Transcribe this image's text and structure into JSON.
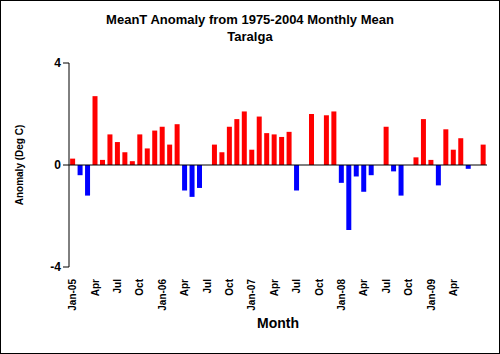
{
  "chart_data": {
    "type": "bar",
    "title": "MeanT Anomaly from 1975-2004 Monthly Mean",
    "subtitle": "Taralga",
    "x_label": "Month",
    "y_label": "Anomaly (Deg C)",
    "categories": [
      "Jan-05",
      null,
      null,
      "Apr",
      null,
      null,
      "Jul",
      null,
      null,
      "Oct",
      null,
      null,
      "Jan-06",
      null,
      null,
      "Apr",
      null,
      null,
      "Jul",
      null,
      null,
      "Oct",
      null,
      null,
      "Jan-07",
      null,
      null,
      "Apr",
      null,
      null,
      "Jul",
      null,
      null,
      "Oct",
      null,
      null,
      "Jan-08",
      null,
      null,
      "Apr",
      null,
      null,
      "Jul",
      null,
      null,
      "Oct",
      null,
      null,
      "Jan-09",
      null,
      null,
      "Apr",
      null,
      null,
      null,
      null
    ],
    "values": [
      0.25,
      -0.4,
      -1.2,
      2.7,
      0.2,
      1.2,
      0.9,
      0.5,
      0.15,
      1.2,
      0.65,
      1.35,
      1.5,
      0.8,
      1.6,
      -1.0,
      -1.25,
      -0.9,
      null,
      0.8,
      0.5,
      1.5,
      1.8,
      2.1,
      0.6,
      1.9,
      1.25,
      1.2,
      1.1,
      1.3,
      -1.0,
      null,
      2.0,
      null,
      1.95,
      2.1,
      -0.7,
      -2.55,
      -0.45,
      -1.05,
      -0.4,
      null,
      1.5,
      -0.25,
      -1.2,
      null,
      0.3,
      1.8,
      0.2,
      -0.8,
      1.4,
      0.6,
      1.05,
      -0.15,
      null,
      0.8
    ],
    "colors": [
      "#ff0000",
      "#0000ff",
      "#0000ff",
      "#ff0000",
      "#ff0000",
      "#ff0000",
      "#ff0000",
      "#ff0000",
      "#ff0000",
      "#ff0000",
      "#ff0000",
      "#ff0000",
      "#ff0000",
      "#ff0000",
      "#ff0000",
      "#0000ff",
      "#0000ff",
      "#0000ff",
      null,
      "#ff0000",
      "#ff0000",
      "#ff0000",
      "#ff0000",
      "#ff0000",
      "#ff0000",
      "#ff0000",
      "#ff0000",
      "#ff0000",
      "#ff0000",
      "#ff0000",
      "#0000ff",
      null,
      "#ff0000",
      null,
      "#ff0000",
      "#ff0000",
      "#0000ff",
      "#0000ff",
      "#0000ff",
      "#0000ff",
      "#0000ff",
      null,
      "#ff0000",
      "#0000ff",
      "#0000ff",
      null,
      "#ff0000",
      "#ff0000",
      "#ff0000",
      "#0000ff",
      "#ff0000",
      "#ff0000",
      "#ff0000",
      "#0000ff",
      null,
      "#ff0000"
    ],
    "ylim": [
      -4,
      4
    ],
    "yticks": [
      -4,
      0,
      4
    ],
    "grid": false
  }
}
